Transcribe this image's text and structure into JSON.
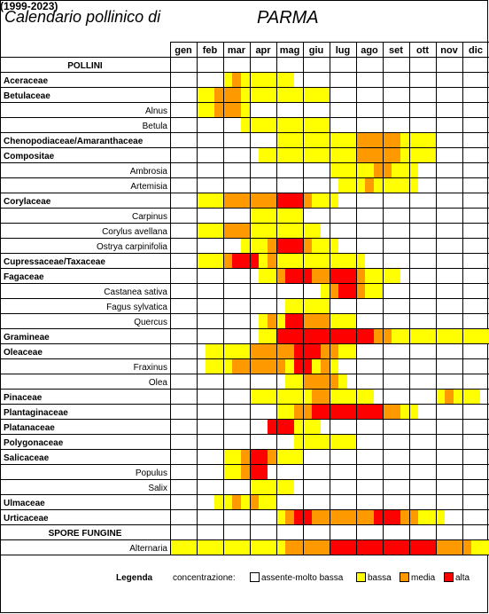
{
  "header": {
    "title_left": "Calendario pollinico di",
    "city": "PARMA",
    "years": "(1999-2023)"
  },
  "legend": {
    "label": "Legenda",
    "concentration_label": "concentrazione:",
    "levels": [
      {
        "key": 0,
        "label": "assente-molto bassa",
        "color": "#ffffff"
      },
      {
        "key": 1,
        "label": "bassa",
        "color": "#ffff00"
      },
      {
        "key": 2,
        "label": "media",
        "color": "#ff9900"
      },
      {
        "key": 3,
        "label": "alta",
        "color": "#ff0000"
      }
    ]
  },
  "chart_data": {
    "type": "heatmap",
    "title": "Calendario pollinico di PARMA",
    "period": "(1999-2023)",
    "columns": [
      "gen",
      "feb",
      "mar",
      "apr",
      "mag",
      "giu",
      "lug",
      "ago",
      "set",
      "ott",
      "nov",
      "dic"
    ],
    "periods_per_month": 3,
    "value_scale": {
      "0": "assente-molto bassa",
      "1": "bassa",
      "2": "media",
      "3": "alta"
    },
    "rows": [
      {
        "label": "POLLINI",
        "kind": "section",
        "values": []
      },
      {
        "label": "Aceraceae",
        "kind": "family",
        "values": [
          0,
          0,
          0,
          0,
          0,
          0,
          1,
          2,
          1,
          1,
          1,
          1,
          1,
          1,
          0,
          0,
          0,
          0,
          0,
          0,
          0,
          0,
          0,
          0,
          0,
          0,
          0,
          0,
          0,
          0,
          0,
          0,
          0,
          0,
          0,
          0
        ]
      },
      {
        "label": "Betulaceae",
        "kind": "family",
        "values": [
          0,
          0,
          0,
          1,
          1,
          2,
          2,
          2,
          1,
          1,
          1,
          1,
          1,
          1,
          1,
          1,
          1,
          1,
          0,
          0,
          0,
          0,
          0,
          0,
          0,
          0,
          0,
          0,
          0,
          0,
          0,
          0,
          0,
          0,
          0,
          0
        ]
      },
      {
        "label": "Alnus",
        "kind": "species",
        "values": [
          0,
          0,
          0,
          1,
          1,
          2,
          2,
          2,
          1,
          0,
          0,
          0,
          0,
          0,
          0,
          0,
          0,
          0,
          0,
          0,
          0,
          0,
          0,
          0,
          0,
          0,
          0,
          0,
          0,
          0,
          0,
          0,
          0,
          0,
          0,
          0
        ]
      },
      {
        "label": "Betula",
        "kind": "species",
        "values": [
          0,
          0,
          0,
          0,
          0,
          0,
          0,
          0,
          1,
          1,
          1,
          1,
          1,
          1,
          1,
          1,
          1,
          1,
          0,
          0,
          0,
          0,
          0,
          0,
          0,
          0,
          0,
          0,
          0,
          0,
          0,
          0,
          0,
          0,
          0,
          0
        ]
      },
      {
        "label": "Chenopodiaceae/Amaranthaceae",
        "kind": "family",
        "values": [
          0,
          0,
          0,
          0,
          0,
          0,
          0,
          0,
          0,
          0,
          0,
          0,
          1,
          1,
          1,
          1,
          1,
          1,
          1,
          1,
          1,
          2,
          2,
          2,
          2,
          2,
          1,
          1,
          1,
          1,
          0,
          0,
          0,
          0,
          0,
          0
        ]
      },
      {
        "label": "Compositae",
        "kind": "family",
        "values": [
          0,
          0,
          0,
          0,
          0,
          0,
          0,
          0,
          0,
          0,
          1,
          1,
          1,
          1,
          1,
          1,
          1,
          1,
          1,
          1,
          1,
          2,
          2,
          2,
          2,
          2,
          1,
          1,
          1,
          1,
          0,
          0,
          0,
          0,
          0,
          0
        ]
      },
      {
        "label": "Ambrosia",
        "kind": "species",
        "values": [
          0,
          0,
          0,
          0,
          0,
          0,
          0,
          0,
          0,
          0,
          0,
          0,
          0,
          0,
          0,
          0,
          0,
          0,
          1,
          1,
          1,
          1,
          1,
          2,
          2,
          1,
          1,
          1,
          0,
          0,
          0,
          0,
          0,
          0,
          0,
          0
        ]
      },
      {
        "label": "Artemisia",
        "kind": "species",
        "values": [
          0,
          0,
          0,
          0,
          0,
          0,
          0,
          0,
          0,
          0,
          0,
          0,
          0,
          0,
          0,
          0,
          0,
          0,
          0,
          1,
          1,
          1,
          2,
          1,
          1,
          1,
          1,
          1,
          0,
          0,
          0,
          0,
          0,
          0,
          0,
          0
        ]
      },
      {
        "label": "Corylaceae",
        "kind": "family",
        "values": [
          0,
          0,
          0,
          1,
          1,
          1,
          2,
          2,
          2,
          2,
          2,
          2,
          3,
          3,
          3,
          2,
          1,
          1,
          1,
          0,
          0,
          0,
          0,
          0,
          0,
          0,
          0,
          0,
          0,
          0,
          0,
          0,
          0,
          0,
          0,
          0
        ]
      },
      {
        "label": "Carpinus",
        "kind": "species",
        "values": [
          0,
          0,
          0,
          0,
          0,
          0,
          0,
          0,
          0,
          1,
          1,
          1,
          1,
          1,
          1,
          0,
          0,
          0,
          0,
          0,
          0,
          0,
          0,
          0,
          0,
          0,
          0,
          0,
          0,
          0,
          0,
          0,
          0,
          0,
          0,
          0
        ]
      },
      {
        "label": "Corylus avellana",
        "kind": "species",
        "values": [
          0,
          0,
          0,
          1,
          1,
          1,
          2,
          2,
          2,
          1,
          1,
          1,
          1,
          1,
          1,
          1,
          1,
          0,
          0,
          0,
          0,
          0,
          0,
          0,
          0,
          0,
          0,
          0,
          0,
          0,
          0,
          0,
          0,
          0,
          0,
          0
        ]
      },
      {
        "label": "Ostrya carpinifolia",
        "kind": "species",
        "values": [
          0,
          0,
          0,
          0,
          0,
          0,
          0,
          0,
          1,
          1,
          1,
          2,
          3,
          3,
          3,
          2,
          1,
          1,
          1,
          0,
          0,
          0,
          0,
          0,
          0,
          0,
          0,
          0,
          0,
          0,
          0,
          0,
          0,
          0,
          0,
          0
        ]
      },
      {
        "label": "Cupressaceae/Taxaceae",
        "kind": "family",
        "values": [
          0,
          0,
          0,
          1,
          1,
          1,
          2,
          3,
          3,
          3,
          1,
          2,
          1,
          1,
          1,
          1,
          1,
          1,
          1,
          1,
          1,
          1,
          0,
          0,
          0,
          0,
          0,
          0,
          0,
          0,
          0,
          0,
          0,
          0,
          0,
          0
        ]
      },
      {
        "label": "Fagaceae",
        "kind": "family",
        "values": [
          0,
          0,
          0,
          0,
          0,
          0,
          0,
          0,
          0,
          0,
          1,
          1,
          2,
          3,
          3,
          3,
          2,
          2,
          3,
          3,
          3,
          2,
          1,
          1,
          1,
          1,
          0,
          0,
          0,
          0,
          0,
          0,
          0,
          0,
          0,
          0
        ]
      },
      {
        "label": "Castanea sativa",
        "kind": "species",
        "values": [
          0,
          0,
          0,
          0,
          0,
          0,
          0,
          0,
          0,
          0,
          0,
          0,
          0,
          0,
          0,
          0,
          0,
          1,
          2,
          3,
          3,
          2,
          1,
          1,
          0,
          0,
          0,
          0,
          0,
          0,
          0,
          0,
          0,
          0,
          0,
          0
        ]
      },
      {
        "label": "Fagus sylvatica",
        "kind": "species",
        "values": [
          0,
          0,
          0,
          0,
          0,
          0,
          0,
          0,
          0,
          0,
          0,
          0,
          0,
          1,
          1,
          1,
          1,
          1,
          0,
          0,
          0,
          0,
          0,
          0,
          0,
          0,
          0,
          0,
          0,
          0,
          0,
          0,
          0,
          0,
          0,
          0
        ]
      },
      {
        "label": "Quercus",
        "kind": "species",
        "values": [
          0,
          0,
          0,
          0,
          0,
          0,
          0,
          0,
          0,
          0,
          1,
          2,
          1,
          3,
          3,
          2,
          2,
          2,
          1,
          1,
          1,
          0,
          0,
          0,
          0,
          0,
          0,
          0,
          0,
          0,
          0,
          0,
          0,
          0,
          0,
          0
        ]
      },
      {
        "label": "Gramineae",
        "kind": "family",
        "values": [
          0,
          0,
          0,
          0,
          0,
          0,
          0,
          0,
          0,
          0,
          1,
          1,
          3,
          3,
          3,
          3,
          3,
          3,
          3,
          3,
          3,
          3,
          3,
          2,
          2,
          1,
          1,
          1,
          1,
          1,
          1,
          1,
          1,
          1,
          1,
          1
        ]
      },
      {
        "label": "Oleaceae",
        "kind": "family",
        "values": [
          0,
          0,
          0,
          0,
          1,
          1,
          1,
          1,
          1,
          2,
          2,
          2,
          2,
          2,
          3,
          3,
          3,
          2,
          2,
          1,
          1,
          0,
          0,
          0,
          0,
          0,
          0,
          0,
          0,
          0,
          0,
          0,
          0,
          0,
          0,
          0
        ]
      },
      {
        "label": "Fraxinus",
        "kind": "species",
        "values": [
          0,
          0,
          0,
          0,
          1,
          1,
          1,
          2,
          2,
          2,
          2,
          2,
          2,
          1,
          3,
          3,
          1,
          2,
          1,
          0,
          0,
          0,
          0,
          0,
          0,
          0,
          0,
          0,
          0,
          0,
          0,
          0,
          0,
          0,
          0,
          0
        ]
      },
      {
        "label": "Olea",
        "kind": "species",
        "values": [
          0,
          0,
          0,
          0,
          0,
          0,
          0,
          0,
          0,
          0,
          0,
          0,
          0,
          1,
          1,
          2,
          2,
          2,
          2,
          1,
          0,
          0,
          0,
          0,
          0,
          0,
          0,
          0,
          0,
          0,
          0,
          0,
          0,
          0,
          0,
          0
        ]
      },
      {
        "label": "Pinaceae",
        "kind": "family",
        "values": [
          0,
          0,
          0,
          0,
          0,
          0,
          0,
          0,
          0,
          1,
          1,
          1,
          1,
          1,
          1,
          1,
          2,
          2,
          1,
          1,
          1,
          1,
          1,
          0,
          0,
          0,
          0,
          0,
          0,
          0,
          1,
          2,
          1,
          1,
          1,
          0
        ]
      },
      {
        "label": "Plantaginaceae",
        "kind": "family",
        "values": [
          0,
          0,
          0,
          0,
          0,
          0,
          0,
          0,
          0,
          0,
          0,
          0,
          1,
          1,
          2,
          2,
          3,
          3,
          3,
          3,
          3,
          3,
          3,
          3,
          2,
          2,
          1,
          1,
          0,
          0,
          0,
          0,
          0,
          0,
          0,
          0
        ]
      },
      {
        "label": "Platanaceae",
        "kind": "family",
        "values": [
          0,
          0,
          0,
          0,
          0,
          0,
          0,
          0,
          0,
          0,
          0,
          3,
          3,
          3,
          1,
          1,
          1,
          0,
          0,
          0,
          0,
          0,
          0,
          0,
          0,
          0,
          0,
          0,
          0,
          0,
          0,
          0,
          0,
          0,
          0,
          0
        ]
      },
      {
        "label": "Polygonaceae",
        "kind": "family",
        "values": [
          0,
          0,
          0,
          0,
          0,
          0,
          0,
          0,
          0,
          0,
          0,
          0,
          0,
          0,
          1,
          1,
          1,
          1,
          1,
          1,
          1,
          0,
          0,
          0,
          0,
          0,
          0,
          0,
          0,
          0,
          0,
          0,
          0,
          0,
          0,
          0
        ]
      },
      {
        "label": "Salicaceae",
        "kind": "family",
        "values": [
          0,
          0,
          0,
          0,
          0,
          0,
          1,
          1,
          2,
          3,
          3,
          2,
          1,
          1,
          1,
          0,
          0,
          0,
          0,
          0,
          0,
          0,
          0,
          0,
          0,
          0,
          0,
          0,
          0,
          0,
          0,
          0,
          0,
          0,
          0,
          0
        ]
      },
      {
        "label": "Populus",
        "kind": "species",
        "values": [
          0,
          0,
          0,
          0,
          0,
          0,
          1,
          1,
          2,
          3,
          3,
          0,
          0,
          0,
          0,
          0,
          0,
          0,
          0,
          0,
          0,
          0,
          0,
          0,
          0,
          0,
          0,
          0,
          0,
          0,
          0,
          0,
          0,
          0,
          0,
          0
        ]
      },
      {
        "label": "Salix",
        "kind": "species",
        "values": [
          0,
          0,
          0,
          0,
          0,
          0,
          0,
          0,
          0,
          1,
          1,
          1,
          1,
          1,
          0,
          0,
          0,
          0,
          0,
          0,
          0,
          0,
          0,
          0,
          0,
          0,
          0,
          0,
          0,
          0,
          0,
          0,
          0,
          0,
          0,
          0
        ]
      },
      {
        "label": "Ulmaceae",
        "kind": "family",
        "values": [
          0,
          0,
          0,
          0,
          0,
          1,
          1,
          2,
          1,
          2,
          1,
          1,
          0,
          0,
          0,
          0,
          0,
          0,
          0,
          0,
          0,
          0,
          0,
          0,
          0,
          0,
          0,
          0,
          0,
          0,
          0,
          0,
          0,
          0,
          0,
          0
        ]
      },
      {
        "label": "Urticaceae",
        "kind": "family",
        "values": [
          0,
          0,
          0,
          0,
          0,
          0,
          0,
          0,
          0,
          0,
          0,
          0,
          1,
          2,
          3,
          3,
          2,
          2,
          2,
          2,
          2,
          2,
          2,
          3,
          3,
          3,
          2,
          2,
          1,
          1,
          1,
          0,
          0,
          0,
          0,
          0
        ]
      },
      {
        "label": "SPORE FUNGINE",
        "kind": "section",
        "values": []
      },
      {
        "label": "Alternaria",
        "kind": "species",
        "values": [
          1,
          1,
          1,
          1,
          1,
          1,
          1,
          1,
          1,
          1,
          1,
          1,
          1,
          2,
          2,
          2,
          2,
          2,
          3,
          3,
          3,
          3,
          3,
          3,
          3,
          3,
          3,
          3,
          3,
          3,
          2,
          2,
          2,
          2,
          1,
          1
        ]
      }
    ]
  }
}
